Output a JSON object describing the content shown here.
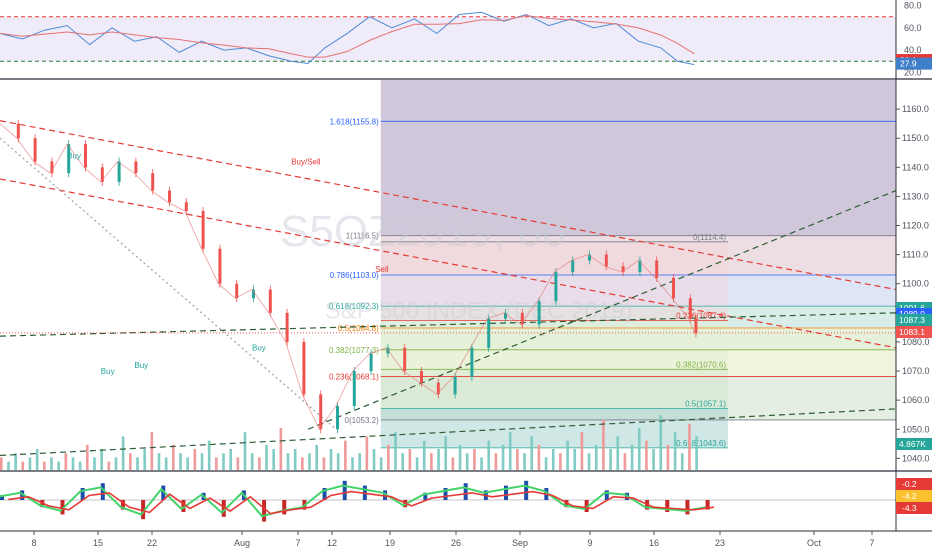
{
  "watermark": {
    "symbol": "S5OZ2019, 60",
    "name": "S&P 500 INDEX (DEC 2019)"
  },
  "x_axis": {
    "ticks": [
      "8",
      "15",
      "22",
      "Aug",
      "7",
      "12",
      "19",
      "26",
      "Sep",
      "9",
      "16",
      "23",
      "Oct",
      "7"
    ]
  },
  "rsi_panel": {
    "ticks": [
      "80.0",
      "60.0",
      "40.0",
      "20.0"
    ],
    "badges": [
      {
        "text": "31.1",
        "color": "#e53935"
      },
      {
        "text": "27.9",
        "color": "#3f7fc9"
      }
    ]
  },
  "price_panel": {
    "ticks": [
      "1160.0",
      "1150.0",
      "1140.0",
      "1130.0",
      "1120.0",
      "1110.0",
      "1100.0",
      "1090.0",
      "1080.0",
      "1070.0",
      "1060.0",
      "1050.0",
      "1040.0"
    ],
    "badges": [
      {
        "text": "1091.6",
        "color": "#26a69a"
      },
      {
        "text": "1089.0",
        "color": "#2962ff"
      },
      {
        "text": "1087.3",
        "color": "#26a69a"
      },
      {
        "text": "1083.1",
        "color": "#ef5350"
      },
      {
        "text": "4.867K",
        "color": "#26a69a"
      }
    ],
    "fib_upper_labels": [
      {
        "text": "1.618(1155.8)",
        "price": 1155.8,
        "color": "#2962ff"
      },
      {
        "text": "1(1116.5)",
        "price": 1116.5,
        "color": "#787b86"
      },
      {
        "text": "0.786(1103.0)",
        "price": 1103.0,
        "color": "#2962ff"
      },
      {
        "text": "0.618(1092.3)",
        "price": 1092.3,
        "color": "#26a69a"
      },
      {
        "text": "0.5(1084.8)",
        "price": 1084.8,
        "color": "#f57c00"
      },
      {
        "text": "0.382(1077.3)",
        "price": 1077.3,
        "color": "#7cb342"
      },
      {
        "text": "0.236(1068.1)",
        "price": 1068.1,
        "color": "#e53935"
      },
      {
        "text": "0(1053.2)",
        "price": 1053.2,
        "color": "#787b86"
      }
    ],
    "fib_right_labels": [
      {
        "text": "0(1114.4)",
        "price": 1114.4,
        "color": "#787b86"
      },
      {
        "text": "0.236(1087.4)",
        "price": 1087.4,
        "color": "#e53935"
      },
      {
        "text": "0.382(1070.6)",
        "price": 1070.6,
        "color": "#7cb342"
      },
      {
        "text": "0.5(1057.1)",
        "price": 1057.1,
        "color": "#26a69a"
      },
      {
        "text": "0.618(1043.6)",
        "price": 1043.6,
        "color": "#26a69a"
      }
    ],
    "signal_labels": [
      {
        "text": "Buy",
        "x": 12,
        "price": 1143
      },
      {
        "text": "Buy/Sell",
        "x": 52,
        "price": 1141
      },
      {
        "text": "Buy",
        "x": 18,
        "price": 1069
      },
      {
        "text": "Buy",
        "x": 24,
        "price": 1071
      },
      {
        "text": "Buy",
        "x": 45,
        "price": 1077
      },
      {
        "text": "Sell",
        "x": 67,
        "price": 1104
      }
    ]
  },
  "macd_panel": {
    "badges": [
      {
        "text": "-0.2",
        "color": "#e53935"
      },
      {
        "text": "-4.2",
        "color": "#fbc02d"
      },
      {
        "text": "-4.3",
        "color": "#e53935"
      }
    ]
  },
  "chart_data": {
    "type": "line",
    "symbol": "S5OZ2019, 60",
    "price_range": [
      1036,
      1170
    ],
    "rsi_range": [
      15,
      85
    ],
    "x_ticks": [
      "8",
      "15",
      "22",
      "Aug",
      "7",
      "12",
      "19",
      "26",
      "Sep",
      "9",
      "16",
      "23",
      "Oct",
      "7"
    ],
    "price_levels": {
      "last": 1083.1,
      "level_1091_6": 1091.6,
      "level_1089_0": 1089.0,
      "level_1087_3": 1087.3
    },
    "price_series": [
      [
        0,
        1155
      ],
      [
        3,
        1150
      ],
      [
        6,
        1142
      ],
      [
        9,
        1138
      ],
      [
        12,
        1148
      ],
      [
        15,
        1140
      ],
      [
        18,
        1135
      ],
      [
        21,
        1142
      ],
      [
        24,
        1138
      ],
      [
        27,
        1132
      ],
      [
        30,
        1128
      ],
      [
        33,
        1125
      ],
      [
        36,
        1112
      ],
      [
        39,
        1100
      ],
      [
        42,
        1095
      ],
      [
        45,
        1098
      ],
      [
        48,
        1090
      ],
      [
        51,
        1080
      ],
      [
        54,
        1062
      ],
      [
        57,
        1050
      ],
      [
        60,
        1058
      ],
      [
        63,
        1070
      ],
      [
        66,
        1076
      ],
      [
        69,
        1078
      ],
      [
        72,
        1070
      ],
      [
        75,
        1066
      ],
      [
        78,
        1062
      ],
      [
        81,
        1068
      ],
      [
        84,
        1078
      ],
      [
        87,
        1088
      ],
      [
        90,
        1090
      ],
      [
        93,
        1086
      ],
      [
        96,
        1094
      ],
      [
        99,
        1104
      ],
      [
        102,
        1108
      ],
      [
        105,
        1110
      ],
      [
        108,
        1106
      ],
      [
        111,
        1104
      ],
      [
        114,
        1108
      ],
      [
        117,
        1102
      ],
      [
        120,
        1095
      ],
      [
        123,
        1088
      ],
      [
        124,
        1083
      ]
    ],
    "rsi_series": [
      [
        0,
        55
      ],
      [
        4,
        50
      ],
      [
        8,
        58
      ],
      [
        12,
        62
      ],
      [
        16,
        45
      ],
      [
        20,
        60
      ],
      [
        24,
        48
      ],
      [
        28,
        52
      ],
      [
        32,
        38
      ],
      [
        36,
        48
      ],
      [
        40,
        40
      ],
      [
        44,
        42
      ],
      [
        48,
        35
      ],
      [
        52,
        30
      ],
      [
        55,
        28
      ],
      [
        58,
        42
      ],
      [
        62,
        55
      ],
      [
        66,
        70
      ],
      [
        70,
        60
      ],
      [
        74,
        68
      ],
      [
        78,
        55
      ],
      [
        82,
        72
      ],
      [
        86,
        74
      ],
      [
        90,
        66
      ],
      [
        94,
        72
      ],
      [
        98,
        62
      ],
      [
        102,
        68
      ],
      [
        106,
        60
      ],
      [
        110,
        64
      ],
      [
        114,
        48
      ],
      [
        118,
        42
      ],
      [
        121,
        30
      ],
      [
        124,
        27
      ]
    ],
    "volume_series": [
      3,
      2,
      4,
      2,
      3,
      5,
      2,
      3,
      2,
      4,
      3,
      2,
      6,
      3,
      5,
      2,
      3,
      8,
      4,
      3,
      5,
      9,
      4,
      3,
      6,
      4,
      3,
      5,
      4,
      7,
      3,
      4,
      5,
      3,
      9,
      4,
      3,
      6,
      5,
      10,
      4,
      5,
      3,
      4,
      6,
      3,
      5,
      4,
      7,
      3,
      4,
      8,
      5,
      3,
      6,
      9,
      4,
      5,
      3,
      7,
      4,
      5,
      8,
      3,
      6,
      4,
      5,
      3,
      7,
      4,
      6,
      9,
      5,
      4,
      8,
      6,
      3,
      5,
      4,
      7,
      5,
      9,
      4,
      6,
      12,
      5,
      8,
      4,
      6,
      10,
      7,
      5,
      13,
      6,
      9,
      4,
      11,
      8
    ]
  }
}
